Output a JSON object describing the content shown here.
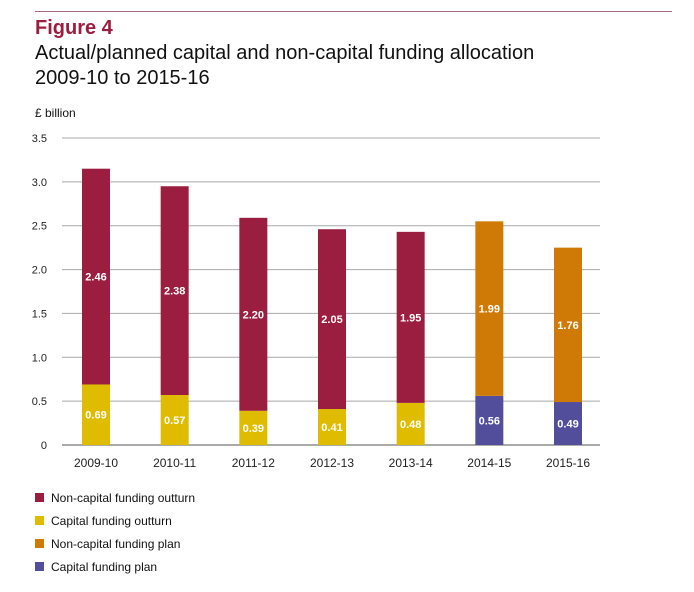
{
  "figure": {
    "label": "Figure 4",
    "title_line1": "Actual/planned capital and non-capital funding allocation",
    "title_line2": "2009-10 to 2015-16",
    "unit": "£ billion"
  },
  "colors": {
    "non_capital_outturn": "#9b1d3f",
    "capital_outturn": "#dfbc00",
    "non_capital_plan": "#cf7a06",
    "capital_plan": "#534e9c",
    "grid": "#a8a8a8",
    "axis": "#555555"
  },
  "chart_data": {
    "type": "bar",
    "stacked": true,
    "title": "Actual/planned capital and non-capital funding allocation 2009-10 to 2015-16",
    "xlabel": "",
    "ylabel": "£ billion",
    "ylim": [
      0,
      3.5
    ],
    "yticks": [
      0,
      0.5,
      1.0,
      1.5,
      2.0,
      2.5,
      3.0,
      3.5
    ],
    "ytick_labels": [
      "0",
      "0.5",
      "1.0",
      "1.5",
      "2.0",
      "2.5",
      "3.0",
      "3.5"
    ],
    "grid": true,
    "legend_position": "bottom-left",
    "categories": [
      "2009-10",
      "2010-11",
      "2011-12",
      "2012-13",
      "2013-14",
      "2014-15",
      "2015-16"
    ],
    "series": [
      {
        "name": "Non-capital funding outturn",
        "key": "non_capital_outturn",
        "values": [
          2.46,
          2.38,
          2.2,
          2.05,
          1.95,
          null,
          null
        ]
      },
      {
        "name": "Capital funding outturn",
        "key": "capital_outturn",
        "values": [
          0.69,
          0.57,
          0.39,
          0.41,
          0.48,
          null,
          null
        ]
      },
      {
        "name": "Non-capital funding plan",
        "key": "non_capital_plan",
        "values": [
          null,
          null,
          null,
          null,
          null,
          1.99,
          1.76
        ]
      },
      {
        "name": "Capital funding plan",
        "key": "capital_plan",
        "values": [
          null,
          null,
          null,
          null,
          null,
          0.56,
          0.49
        ]
      }
    ],
    "legend": [
      "Non-capital funding outturn",
      "Capital funding outturn",
      "Non-capital funding plan",
      "Capital funding plan"
    ]
  }
}
